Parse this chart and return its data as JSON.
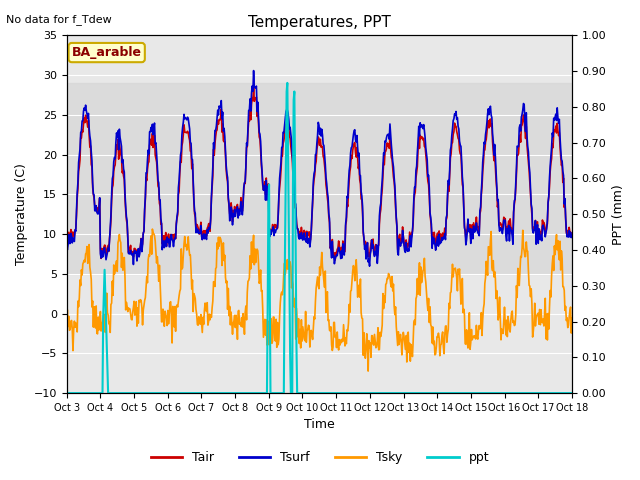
{
  "title": "Temperatures, PPT",
  "no_data_text": "No data for f_Tdew",
  "site_label": "BA_arable",
  "xlabel": "Time",
  "ylabel_left": "Temperature (C)",
  "ylabel_right": "PPT (mm)",
  "ylim_left": [
    -10,
    35
  ],
  "ylim_right": [
    0.0,
    1.0
  ],
  "xlim": [
    0,
    360
  ],
  "x_tick_labels": [
    "Oct 3",
    "Oct 4",
    "Oct 5",
    "Oct 6",
    "Oct 7",
    "Oct 8",
    "Oct 9",
    "Oct 10",
    "Oct 11",
    "Oct 12",
    "Oct 13",
    "Oct 14",
    "Oct 15",
    "Oct 16",
    "Oct 17",
    "Oct 18"
  ],
  "x_tick_positions": [
    0,
    24,
    48,
    72,
    96,
    120,
    144,
    168,
    192,
    216,
    240,
    264,
    288,
    312,
    336,
    360
  ],
  "shaded_band": [
    5,
    29
  ],
  "shaded_color": "#d8d8d8",
  "line_colors": {
    "Tair": "#cc0000",
    "Tsurf": "#0000cc",
    "Tsky": "#ff9900",
    "ppt": "#00cccc"
  },
  "line_widths": {
    "Tair": 1.2,
    "Tsurf": 1.2,
    "Tsky": 1.2,
    "ppt": 1.5
  },
  "background_color": "#ffffff",
  "plot_bg_color": "#e8e8e8",
  "title_fontsize": 11,
  "label_fontsize": 9,
  "tick_fontsize": 8
}
